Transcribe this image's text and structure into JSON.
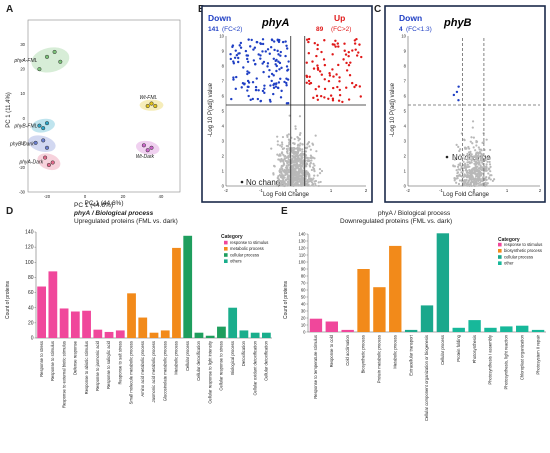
{
  "panel_letters": {
    "a": "A",
    "b": "B",
    "c": "C",
    "d": "D",
    "e": "E"
  },
  "chart_data": [
    {
      "id": "A",
      "type": "scatter",
      "xlabel": "PC 1 (44.6%)",
      "ylabel": "PC 1 (11.4%)",
      "xlim": [
        -30,
        50
      ],
      "ylim": [
        -30,
        40
      ],
      "xticks": [
        -20,
        0,
        20,
        40
      ],
      "yticks": [
        -30,
        -20,
        -10,
        0,
        10,
        20,
        30
      ],
      "series": [
        {
          "name": "phyA-FML",
          "color": "#7cc47a",
          "points": [
            [
              -24,
              20
            ],
            [
              -20,
              25
            ],
            [
              -16,
              27
            ],
            [
              -13,
              23
            ]
          ]
        },
        {
          "name": "phyB-FML",
          "color": "#2ca5c8",
          "points": [
            [
              -24,
              -3
            ],
            [
              -22,
              -4
            ],
            [
              -20,
              -2
            ]
          ]
        },
        {
          "name": "phyB-Dark",
          "color": "#6a7fd0",
          "points": [
            [
              -26,
              -10
            ],
            [
              -22,
              -9
            ],
            [
              -20,
              -12
            ]
          ]
        },
        {
          "name": "phyA-Dark",
          "color": "#e56a8c",
          "points": [
            [
              -21,
              -16
            ],
            [
              -19,
              -19
            ],
            [
              -17,
              -18
            ]
          ]
        },
        {
          "name": "Wt-FML",
          "color": "#e0c21a",
          "points": [
            [
              33,
              5
            ],
            [
              35,
              6
            ],
            [
              37,
              5
            ]
          ]
        },
        {
          "name": "Wt-Dark",
          "color": "#cc66cc",
          "points": [
            [
              31,
              -11
            ],
            [
              33,
              -13
            ],
            [
              35,
              -12
            ]
          ]
        }
      ]
    },
    {
      "id": "B",
      "type": "scatter",
      "title": "phyA",
      "xlabel": "Log Fold Change",
      "ylabel": "-Log 10 P(adj) value",
      "xlim": [
        -2,
        2
      ],
      "ylim": [
        0,
        10
      ],
      "xticks": [
        -2,
        -1,
        0,
        1,
        2
      ],
      "yticks": [
        0,
        1,
        2,
        3,
        4,
        5,
        6,
        7,
        8,
        9,
        10
      ],
      "down_label": "Down",
      "down_count": "141",
      "down_fc": "(FC<2)",
      "up_label": "Up",
      "up_count": "89",
      "up_fc": "(FC>2)",
      "nochange_label": "No change"
    },
    {
      "id": "C",
      "type": "scatter",
      "title": "phyB",
      "xlabel": "Log Fold Change",
      "ylabel": "-Log 10 P(adj) value",
      "xlim": [
        -2,
        2
      ],
      "ylim": [
        0,
        10
      ],
      "xticks": [
        -2,
        -1,
        0,
        1,
        2
      ],
      "yticks": [
        0,
        1,
        2,
        3,
        4,
        5,
        6,
        7,
        8,
        9,
        10
      ],
      "down_label": "Down",
      "down_count": "4",
      "down_fc": "(FC<1.3)",
      "nochange_label": "No change"
    },
    {
      "id": "D",
      "type": "bar",
      "title_line1": "PC 1 (44.6%)",
      "title_line2": "phyA / Biological process",
      "title_line3": "Upregulated proteins (FML vs. dark)",
      "ylabel": "Count of proteins",
      "ylim": [
        0,
        140
      ],
      "yticks": [
        0,
        20,
        40,
        60,
        80,
        100,
        120,
        140
      ],
      "legend_title": "Category",
      "legend": [
        {
          "name": "response to stimulus",
          "color": "#f0479b"
        },
        {
          "name": "metabolic process",
          "color": "#f28a1a"
        },
        {
          "name": "cellular process",
          "color": "#1f9e5e"
        },
        {
          "name": "others",
          "color": "#1aae8c"
        }
      ],
      "categories": [
        "Response to stress",
        "Response to stimulus",
        "Response to external biotic stimulus",
        "Defense response",
        "Response to abiotic stimulus",
        "Response to jasmonic acid",
        "Response to salicylic acid",
        "Response to salt stress",
        "Small molecule metabolic process",
        "Amino acid metabolic process",
        "Jasmonic acid metabolic process",
        "Glucosinolate metabolic process",
        "Metabolic process",
        "Cellular process",
        "Cellular detoxification",
        "Cellular response to light intensity",
        "Cellular response to stress",
        "Biological process",
        "Detoxification",
        "Cellular oxidant detoxification",
        "Cellular detoxification"
      ],
      "values": [
        68,
        88,
        39,
        35,
        36,
        11,
        8,
        10,
        59,
        27,
        7,
        10,
        119,
        135,
        7,
        3,
        15,
        40,
        10,
        7,
        7
      ],
      "groups": [
        0,
        0,
        0,
        0,
        0,
        0,
        0,
        0,
        1,
        1,
        1,
        1,
        1,
        2,
        2,
        2,
        2,
        3,
        3,
        3,
        3
      ]
    },
    {
      "id": "E",
      "type": "bar",
      "title_line1": "phyA / Biological process",
      "title_line2": "Downregulated proteins (FML vs. dark)",
      "ylabel": "Count of proteins",
      "ylim": [
        0,
        140
      ],
      "yticks": [
        0,
        10,
        20,
        30,
        40,
        50,
        60,
        70,
        80,
        90,
        100,
        110,
        120,
        130,
        140
      ],
      "legend_title": "Category",
      "legend": [
        {
          "name": "response to stimulus",
          "color": "#f0479b"
        },
        {
          "name": "biosynthetic process",
          "color": "#f28a1a"
        },
        {
          "name": "cellular process",
          "color": "#1aa88c"
        },
        {
          "name": "other",
          "color": "#17b89a"
        }
      ],
      "categories": [
        "Response to temperature stimulus",
        "Response to cold",
        "Cold acclimation",
        "Biosynthetic process",
        "Protein metabolic process",
        "Metabolic process",
        "Extracellular transport",
        "Cellular component organization or biogenesis",
        "Cellular process",
        "Protein folding",
        "Photosynthesis",
        "Photosynthesis I assembly",
        "Photosynthesis, light reaction",
        "Chloroplast organization",
        "Photosystem II repair"
      ],
      "values": [
        19,
        15,
        3,
        90,
        64,
        123,
        3,
        38,
        141,
        6,
        17,
        6,
        8,
        9,
        3
      ],
      "groups": [
        0,
        0,
        0,
        1,
        1,
        1,
        2,
        2,
        2,
        3,
        3,
        3,
        3,
        3,
        3
      ]
    }
  ]
}
